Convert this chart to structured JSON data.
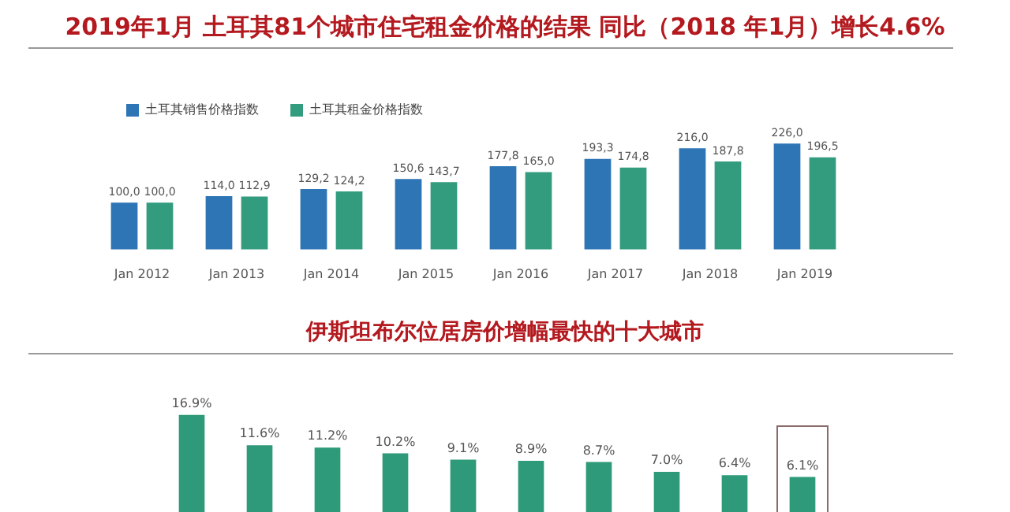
{
  "chart_data": [
    {
      "type": "bar",
      "title": "2019年1月  土耳其81个城市住宅租金价格的结果 同比（2018 年1月）增长4.6%",
      "categories": [
        "Jan 2012",
        "Jan 2013",
        "Jan 2014",
        "Jan 2015",
        "Jan 2016",
        "Jan 2017",
        "Jan 2018",
        "Jan 2019"
      ],
      "legend": "top left",
      "series": [
        {
          "name": "土耳其销售价格指数",
          "color": "#2e75b6",
          "values": [
            100.0,
            114.0,
            129.2,
            150.6,
            177.8,
            193.3,
            216.0,
            226.0
          ],
          "value_labels": [
            "100,0",
            "114,0",
            "129,2",
            "150,6",
            "177,8",
            "193,3",
            "216,0",
            "226,0"
          ]
        },
        {
          "name": "土耳其租金价格指数",
          "color": "#339c7e",
          "values": [
            100.0,
            112.9,
            124.2,
            143.7,
            165.0,
            174.8,
            187.8,
            196.5
          ],
          "value_labels": [
            "100,0",
            "112,9",
            "124,2",
            "143,7",
            "165,0",
            "174,8",
            "187,8",
            "196,5"
          ]
        }
      ]
    },
    {
      "type": "bar",
      "title": "伊斯坦布尔位居房价增幅最快的十大城市",
      "categories": [
        null,
        null,
        null,
        null,
        null,
        null,
        null,
        null,
        null,
        null
      ],
      "legend": false,
      "series": [
        {
          "color": "#2e9a7a",
          "values": [
            16.9,
            11.6,
            11.2,
            10.2,
            9.1,
            8.9,
            8.7,
            7.0,
            6.4,
            6.1
          ],
          "value_labels": [
            "16.9%",
            "11.6%",
            "11.2%",
            "10.2%",
            "9.1%",
            "8.9%",
            "8.7%",
            "7.0%",
            "6.4%",
            "6.1%"
          ]
        }
      ]
    }
  ]
}
